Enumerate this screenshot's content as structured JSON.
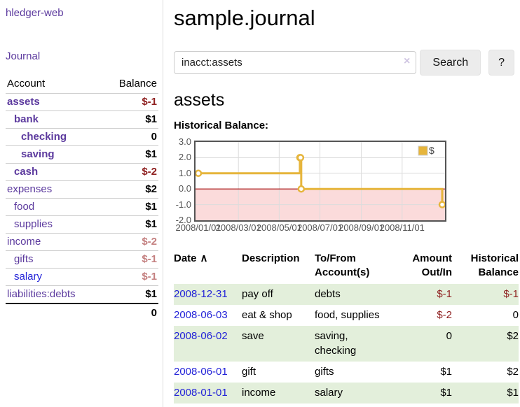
{
  "app": {
    "brand": "hledger-web",
    "nav_journal": "Journal"
  },
  "sidebar": {
    "accounts_header": {
      "account": "Account",
      "balance": "Balance"
    },
    "accounts": [
      {
        "name": "assets",
        "balance": "$-1",
        "depth": 1,
        "bold": true,
        "link_color": "purple",
        "balance_color": "negative"
      },
      {
        "name": "bank",
        "balance": "$1",
        "depth": 2,
        "bold": true,
        "link_color": "purple",
        "balance_color": "normal"
      },
      {
        "name": "checking",
        "balance": "0",
        "depth": 3,
        "bold": true,
        "link_color": "purple",
        "balance_color": "normal"
      },
      {
        "name": "saving",
        "balance": "$1",
        "depth": 3,
        "bold": true,
        "link_color": "purple",
        "balance_color": "normal"
      },
      {
        "name": "cash",
        "balance": "$-2",
        "depth": 2,
        "bold": true,
        "link_color": "purple",
        "balance_color": "negative"
      },
      {
        "name": "expenses",
        "balance": "$2",
        "depth": 1,
        "bold": false,
        "link_color": "purple",
        "balance_color": "normal"
      },
      {
        "name": "food",
        "balance": "$1",
        "depth": 2,
        "bold": false,
        "link_color": "purple",
        "balance_color": "normal"
      },
      {
        "name": "supplies",
        "balance": "$1",
        "depth": 2,
        "bold": false,
        "link_color": "purple",
        "balance_color": "normal"
      },
      {
        "name": "income",
        "balance": "$-2",
        "depth": 1,
        "bold": false,
        "link_color": "purple",
        "balance_color": "negative-soft"
      },
      {
        "name": "gifts",
        "balance": "$-1",
        "depth": 2,
        "bold": false,
        "link_color": "purple",
        "balance_color": "negative-soft"
      },
      {
        "name": "salary",
        "balance": "$-1",
        "depth": 2,
        "bold": false,
        "link_color": "blue",
        "balance_color": "negative-soft"
      },
      {
        "name": "liabilities:debts",
        "balance": "$1",
        "depth": 1,
        "bold": false,
        "link_color": "purple",
        "balance_color": "normal"
      }
    ],
    "total": "0"
  },
  "header": {
    "title": "sample.journal"
  },
  "search": {
    "value": "inacct:assets",
    "clear_icon": "×",
    "button_label": "Search",
    "help_label": "?"
  },
  "account_page": {
    "heading": "assets",
    "chart_label": "Historical Balance:"
  },
  "chart_data": {
    "type": "line",
    "mode": "step",
    "title": "Historical Balance:",
    "series": [
      {
        "name": "$",
        "color": "#e6b53c",
        "points": [
          [
            "2008-01-01",
            1
          ],
          [
            "2008-06-01",
            2
          ],
          [
            "2008-06-02",
            2
          ],
          [
            "2008-06-03",
            0
          ],
          [
            "2008-12-31",
            -1
          ]
        ]
      }
    ],
    "x_range": [
      "2008-01-01",
      "2008-12-31"
    ],
    "ylim": [
      -2,
      3
    ],
    "y_ticks": [
      3.0,
      2.0,
      1.0,
      0.0,
      -1.0,
      -2.0
    ],
    "x_ticks": [
      "2008/01/01",
      "2008/03/01",
      "2008/05/01",
      "2008/07/01",
      "2008/09/01",
      "2008/11/01"
    ],
    "grid": true,
    "negative_region_fill": "#fbdbdb",
    "zero_line_color": "#a00000",
    "border_color": "#545454",
    "grid_color": "#dcdcdc",
    "legend": {
      "label": "$",
      "position": "top-right",
      "box_color": "#e6b53c"
    }
  },
  "register": {
    "columns": [
      {
        "lines": [
          "Date"
        ],
        "align": "left",
        "sort_indicator": "∧"
      },
      {
        "lines": [
          "Description"
        ],
        "align": "left"
      },
      {
        "lines": [
          "To/From",
          "Account(s)"
        ],
        "align": "left"
      },
      {
        "lines": [
          "Amount",
          "Out/In"
        ],
        "align": "right"
      },
      {
        "lines": [
          "Historical",
          "Balance"
        ],
        "align": "right"
      }
    ],
    "rows": [
      {
        "date": "2008-12-31",
        "description": "pay off",
        "accounts": "debts",
        "amount": "$-1",
        "balance": "$-1",
        "amount_negative": true,
        "balance_negative": true
      },
      {
        "date": "2008-06-03",
        "description": "eat & shop",
        "accounts": "food, supplies",
        "amount": "$-2",
        "balance": "0",
        "amount_negative": true,
        "balance_negative": false
      },
      {
        "date": "2008-06-02",
        "description": "save",
        "accounts": "saving, checking",
        "amount": "0",
        "balance": "$2",
        "amount_negative": false,
        "balance_negative": false
      },
      {
        "date": "2008-06-01",
        "description": "gift",
        "accounts": "gifts",
        "amount": "$1",
        "balance": "$2",
        "amount_negative": false,
        "balance_negative": false
      },
      {
        "date": "2008-01-01",
        "description": "income",
        "accounts": "salary",
        "amount": "$1",
        "balance": "$1",
        "amount_negative": false,
        "balance_negative": false
      }
    ]
  }
}
